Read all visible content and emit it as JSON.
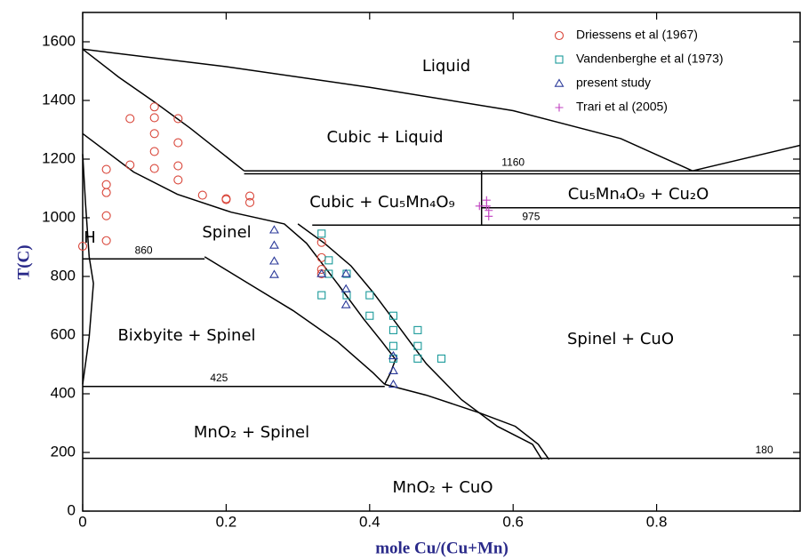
{
  "chart_data": {
    "type": "scatter",
    "xlabel": "mole Cu/(Cu+Mn)",
    "ylabel": "T(C)",
    "xlim": [
      0,
      1
    ],
    "ylim": [
      0,
      1700
    ],
    "xticks": [
      0,
      0.2,
      0.4,
      0.6,
      0.8
    ],
    "yticks": [
      0,
      200,
      400,
      600,
      800,
      1000,
      1200,
      1400,
      1600
    ],
    "legend": "upper right",
    "series": [
      {
        "name": "Driessens et al (1967)",
        "color": "#d9463a",
        "marker": "circle",
        "x": [
          0,
          0.033,
          0.033,
          0.033,
          0.033,
          0.033,
          0.066,
          0.066,
          0.1,
          0.1,
          0.1,
          0.1,
          0.1,
          0.133,
          0.133,
          0.133,
          0.133,
          0.167,
          0.2,
          0.2,
          0.233,
          0.233,
          0.333,
          0.333,
          0.333,
          0.333
        ],
        "y": [
          903,
          1165,
          1113,
          1086,
          1007,
          922,
          1338,
          1180,
          1378,
          1341,
          1287,
          1226,
          1168,
          1338,
          1256,
          1177,
          1129,
          1077,
          1065,
          1062,
          1074,
          1052,
          916,
          864,
          824,
          809
        ]
      },
      {
        "name": "Vandenberghe et al (1973)",
        "color": "#1a9a9a",
        "marker": "square",
        "x": [
          0.333,
          0.343,
          0.343,
          0.333,
          0.368,
          0.368,
          0.4,
          0.4,
          0.433,
          0.467,
          0.433,
          0.467,
          0.433,
          0.467,
          0.5,
          0.433
        ],
        "y": [
          946,
          855,
          809,
          736,
          809,
          736,
          736,
          666,
          666,
          617,
          563,
          563,
          520,
          520,
          520,
          617
        ]
      },
      {
        "name": "present study",
        "color": "#2b3a9a",
        "marker": "triangle",
        "x": [
          0.267,
          0.267,
          0.267,
          0.267,
          0.333,
          0.367,
          0.367,
          0.367,
          0.433,
          0.433,
          0.433
        ],
        "y": [
          958,
          906,
          852,
          806,
          809,
          809,
          757,
          703,
          529,
          478,
          432
        ]
      },
      {
        "name": "Trari et al (2005)",
        "color": "#c040c0",
        "marker": "plus",
        "x": [
          0.553,
          0.563,
          0.563,
          0.566,
          0.566
        ],
        "y": [
          1040,
          1060,
          1040,
          1025,
          1005
        ]
      }
    ],
    "boundaries": [
      {
        "x": [
          0,
          0.2,
          0.4,
          0.6,
          0.75,
          0.85
        ],
        "y": [
          1575,
          1515,
          1445,
          1365,
          1270,
          1160
        ]
      },
      {
        "x": [
          0.85,
          1
        ],
        "y": [
          1160,
          1247
        ]
      },
      {
        "x": [
          0,
          0.05,
          0.1,
          0.15,
          0.225
        ],
        "y": [
          1575,
          1480,
          1395,
          1305,
          1160
        ]
      },
      {
        "x": [
          0,
          0.071,
          0.132,
          0.207,
          0.281,
          0.312,
          0.355,
          0.392,
          0.417,
          0.436,
          0.429,
          0.421
        ],
        "y": [
          1287,
          1156,
          1080,
          1019,
          979,
          913,
          776,
          654,
          578,
          517,
          471,
          432
        ]
      },
      {
        "x": [
          0.3,
          0.337,
          0.374,
          0.405,
          0.442,
          0.479,
          0.528,
          0.578,
          0.627,
          0.64
        ],
        "y": [
          979,
          913,
          836,
          745,
          624,
          502,
          380,
          289,
          228,
          176
        ]
      },
      {
        "x": [
          0.421,
          0.479,
          0.553,
          0.603,
          0.635,
          0.65
        ],
        "y": [
          432,
          395,
          335,
          289,
          228,
          176
        ]
      },
      {
        "x": [
          0.17,
          0.231,
          0.293,
          0.355,
          0.405,
          0.421
        ],
        "y": [
          867,
          776,
          684,
          578,
          471,
          432
        ]
      },
      {
        "x": [
          0,
          0.004,
          0.009
        ],
        "y": [
          1217,
          1049,
          867
        ]
      },
      {
        "x": [
          0.009,
          0.015,
          0.009,
          0
        ],
        "y": [
          867,
          776,
          593,
          432
        ]
      },
      {
        "x": [
          0.556,
          0.556
        ],
        "y": [
          1160,
          976
        ]
      },
      {
        "x": [
          0.556,
          1
        ],
        "y": [
          1034,
          1034
        ]
      },
      {
        "x": [
          0.225,
          1
        ],
        "y": [
          1150,
          1150
        ]
      }
    ],
    "isotherms": [
      {
        "T": 1160,
        "x": [
          0.225,
          1
        ]
      },
      {
        "T": 975,
        "x": [
          0.32,
          1
        ]
      },
      {
        "T": 860,
        "x": [
          0,
          0.17
        ]
      },
      {
        "T": 425,
        "x": [
          0,
          0.421
        ]
      },
      {
        "T": 180,
        "x": [
          0,
          1
        ]
      }
    ],
    "annotations": [
      "Liquid",
      "Cubic + Liquid",
      "Cubic + Cu₅Mn₄O₉",
      "Cu₅Mn₄O₉ + Cu₂O",
      "Spinel",
      "Bixbyite + Spinel",
      "Spinel + CuO",
      "MnO₂ + Spinel",
      "MnO₂ + CuO",
      "H"
    ]
  }
}
